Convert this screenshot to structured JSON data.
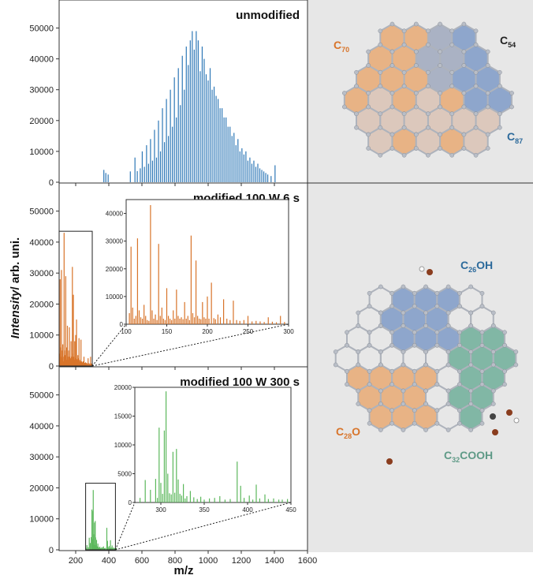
{
  "colors": {
    "blue": "#2e78b7",
    "orange": "#d8742a",
    "green": "#5cb85c",
    "right_bg": "#e7e7e7",
    "hex_blue": "#7e9ac7",
    "hex_orange": "#e7a973",
    "hex_green": "#6fae99",
    "label_orange": "#d8742a",
    "label_blue": "#2c6a9b",
    "label_green": "#5f9a87",
    "label_black": "#222222"
  },
  "axis": {
    "ylabel_italic": "Intensity",
    "ylabel_rest": "/ arb. uni.",
    "xlabel": "m/z"
  },
  "molecules": {
    "top": {
      "c70": {
        "main": "C",
        "sub": "70"
      },
      "c54": {
        "main": "C",
        "sub": "54"
      },
      "c87": {
        "main": "C",
        "sub": "87"
      }
    },
    "bottom": {
      "c26oh": {
        "main": "C",
        "sub": "26",
        "tail": "OH"
      },
      "c28o": {
        "main": "C",
        "sub": "28",
        "tail": "O"
      },
      "c32cooh": {
        "main": "C",
        "sub": "32",
        "tail": "COOH"
      }
    }
  },
  "chart_data": [
    {
      "type": "bar",
      "title": "unmodified",
      "color": "#2e78b7",
      "xlim": [
        100,
        1600
      ],
      "ylim": [
        0,
        55000
      ],
      "yticks": [
        0,
        10000,
        20000,
        30000,
        40000,
        50000
      ],
      "ytick_labels": [
        "0",
        "10000",
        "20000",
        "30000",
        "40000",
        "50000"
      ],
      "xticks": [
        200,
        400,
        600,
        800,
        1000,
        1200,
        1400,
        1600
      ],
      "xtick_labels": [
        "200",
        "400",
        "600",
        "800",
        "1000",
        "1200",
        "1400",
        "1600"
      ],
      "show_xtick_labels": false,
      "x": [
        370,
        382,
        396,
        530,
        558,
        572,
        590,
        602,
        615,
        628,
        640,
        652,
        664,
        676,
        688,
        700,
        712,
        724,
        736,
        748,
        760,
        772,
        784,
        796,
        808,
        820,
        832,
        844,
        856,
        868,
        880,
        892,
        904,
        916,
        928,
        940,
        952,
        964,
        976,
        988,
        1000,
        1012,
        1024,
        1036,
        1048,
        1060,
        1072,
        1084,
        1096,
        1108,
        1120,
        1132,
        1144,
        1156,
        1168,
        1180,
        1192,
        1204,
        1216,
        1228,
        1240,
        1252,
        1264,
        1276,
        1288,
        1300,
        1312,
        1324,
        1336,
        1348,
        1360,
        1380,
        1404
      ],
      "values": [
        4000,
        3000,
        2500,
        3500,
        8000,
        3600,
        4500,
        10000,
        5000,
        12000,
        6000,
        14000,
        7000,
        17000,
        8000,
        20000,
        10000,
        24000,
        13000,
        27000,
        15000,
        30000,
        18000,
        34000,
        21000,
        37000,
        25000,
        41000,
        30000,
        44000,
        38000,
        46000,
        49000,
        43000,
        49000,
        46000,
        36000,
        44000,
        40000,
        35000,
        33000,
        37000,
        30000,
        31000,
        28000,
        27000,
        24000,
        24000,
        21000,
        21000,
        18000,
        18000,
        15000,
        16000,
        12000,
        14000,
        10000,
        11000,
        9000,
        10000,
        7000,
        8000,
        6000,
        7000,
        5000,
        6000,
        4500,
        4000,
        3500,
        3000,
        2500,
        2000,
        5500
      ]
    },
    {
      "type": "bar",
      "title": "modified 100 W 6 s",
      "color": "#d8742a",
      "xlim": [
        100,
        1600
      ],
      "ylim": [
        0,
        55000
      ],
      "yticks": [
        0,
        10000,
        20000,
        30000,
        40000,
        50000
      ],
      "ytick_labels": [
        "0",
        "10000",
        "20000",
        "30000",
        "40000",
        "50000"
      ],
      "xticks": [
        200,
        400,
        600,
        800,
        1000,
        1200,
        1400,
        1600
      ],
      "xtick_labels": [
        "200",
        "400",
        "600",
        "800",
        "1000",
        "1200",
        "1400",
        "1600"
      ],
      "show_xtick_labels": false,
      "x": [
        104,
        106,
        108,
        110,
        112,
        114,
        116,
        118,
        120,
        122,
        124,
        126,
        128,
        130,
        132,
        134,
        136,
        138,
        140,
        142,
        144,
        146,
        148,
        150,
        152,
        154,
        156,
        158,
        160,
        162,
        164,
        166,
        168,
        170,
        172,
        174,
        176,
        178,
        180,
        182,
        184,
        186,
        188,
        190,
        192,
        194,
        196,
        198,
        200,
        202,
        205,
        208,
        210,
        213,
        216,
        220,
        224,
        228,
        232,
        236,
        240,
        245,
        250,
        255,
        260,
        265,
        270,
        275,
        280,
        285,
        290,
        295
      ],
      "values": [
        4000,
        28000,
        6000,
        2000,
        3000,
        31000,
        5000,
        2500,
        2000,
        7000,
        3000,
        1500,
        1200,
        43000,
        5000,
        2000,
        3500,
        1500,
        29000,
        3000,
        6000,
        2000,
        1500,
        13000,
        3000,
        2000,
        1500,
        5000,
        2000,
        12500,
        3000,
        2000,
        2500,
        1800,
        8000,
        2000,
        3000,
        1500,
        32000,
        4000,
        2500,
        23000,
        3000,
        2000,
        1800,
        8000,
        2500,
        2000,
        10000,
        2000,
        15000,
        2200,
        1800,
        3500,
        2500,
        9000,
        2000,
        1500,
        8500,
        1500,
        1200,
        1500,
        3000,
        1000,
        1200,
        1000,
        800,
        2500,
        900,
        700,
        3000,
        800
      ],
      "box": {
        "x0": 100,
        "x1": 300,
        "y0": 0,
        "y1": 43500
      },
      "inset": {
        "xlim": [
          100,
          300
        ],
        "ylim": [
          0,
          45000
        ],
        "xticks": [
          100,
          150,
          200,
          250,
          300
        ],
        "xtick_labels": [
          "100",
          "150",
          "200",
          "250",
          "300"
        ],
        "yticks": [
          0,
          10000,
          20000,
          30000,
          40000
        ],
        "ytick_labels": [
          "0",
          "10000",
          "20000",
          "30000",
          "40000"
        ]
      }
    },
    {
      "type": "bar",
      "title": "modified 100 W 300 s",
      "color": "#5cb85c",
      "xlim": [
        100,
        1600
      ],
      "ylim": [
        0,
        55000
      ],
      "yticks": [
        0,
        10000,
        20000,
        30000,
        40000,
        50000
      ],
      "ytick_labels": [
        "0",
        "10000",
        "20000",
        "30000",
        "40000",
        "50000"
      ],
      "xticks": [
        200,
        400,
        600,
        800,
        1000,
        1200,
        1400,
        1600
      ],
      "xtick_labels": [
        "200",
        "400",
        "600",
        "800",
        "1000",
        "1200",
        "1400",
        "1600"
      ],
      "show_xtick_labels": true,
      "x": [
        262,
        268,
        276,
        282,
        288,
        294,
        296,
        298,
        300,
        302,
        304,
        306,
        308,
        310,
        312,
        314,
        316,
        318,
        320,
        322,
        324,
        326,
        328,
        330,
        334,
        338,
        342,
        346,
        350,
        356,
        362,
        368,
        374,
        380,
        388,
        392,
        396,
        402,
        406,
        410,
        414,
        420,
        424,
        430,
        436,
        440,
        446
      ],
      "values": [
        600,
        1500,
        800,
        3900,
        2200,
        4100,
        800,
        13000,
        3400,
        1500,
        12500,
        19300,
        5000,
        1600,
        1400,
        8800,
        1700,
        9300,
        4000,
        1500,
        1200,
        3200,
        700,
        1100,
        2000,
        900,
        600,
        1000,
        500,
        700,
        800,
        1100,
        500,
        600,
        7100,
        2900,
        800,
        1200,
        500,
        3100,
        700,
        1400,
        600,
        700,
        500,
        500,
        600
      ],
      "box": {
        "x0": 260,
        "x1": 440,
        "y0": 0,
        "y1": 21500
      },
      "inset": {
        "xlim": [
          270,
          450
        ],
        "ylim": [
          0,
          20000
        ],
        "xticks": [
          300,
          350,
          400,
          450
        ],
        "xtick_labels": [
          "300",
          "350",
          "400",
          "450"
        ],
        "yticks": [
          0,
          5000,
          10000,
          15000,
          20000
        ],
        "ytick_labels": [
          "0",
          "5000",
          "10000",
          "15000",
          "20000"
        ]
      }
    }
  ]
}
